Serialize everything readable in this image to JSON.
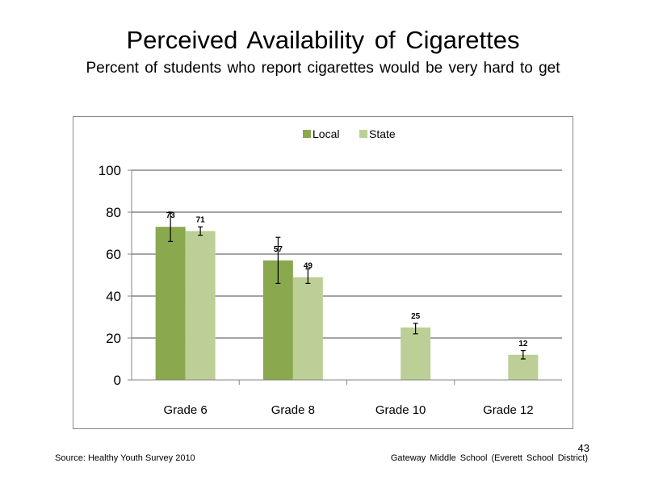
{
  "slide": {
    "title": "Perceived  Availability  of Cigarettes",
    "subtitle": "Percent  of students  who report cigarettes would be very hard to get",
    "source": "Source: Healthy  Youth Survey 2010",
    "school": "Gateway Middle  School  (Everett School District)",
    "page_number": "43"
  },
  "chart_data": {
    "type": "bar",
    "categories": [
      "Grade 6",
      "Grade 8",
      "Grade 10",
      "Grade 12"
    ],
    "series": [
      {
        "name": "Local",
        "color": "#8aa84e",
        "values": [
          73,
          57,
          null,
          null
        ],
        "error": [
          [
            66,
            80
          ],
          [
            46,
            68
          ],
          null,
          null
        ]
      },
      {
        "name": "State",
        "color": "#bccf96",
        "values": [
          71,
          49,
          25,
          12
        ],
        "error": [
          [
            69,
            73
          ],
          [
            46,
            53
          ],
          [
            22,
            27
          ],
          [
            10,
            14
          ]
        ]
      }
    ],
    "ylim": [
      0,
      100
    ],
    "yticks": [
      0,
      20,
      40,
      60,
      80,
      100
    ],
    "grid": true,
    "legend": "top-center"
  }
}
